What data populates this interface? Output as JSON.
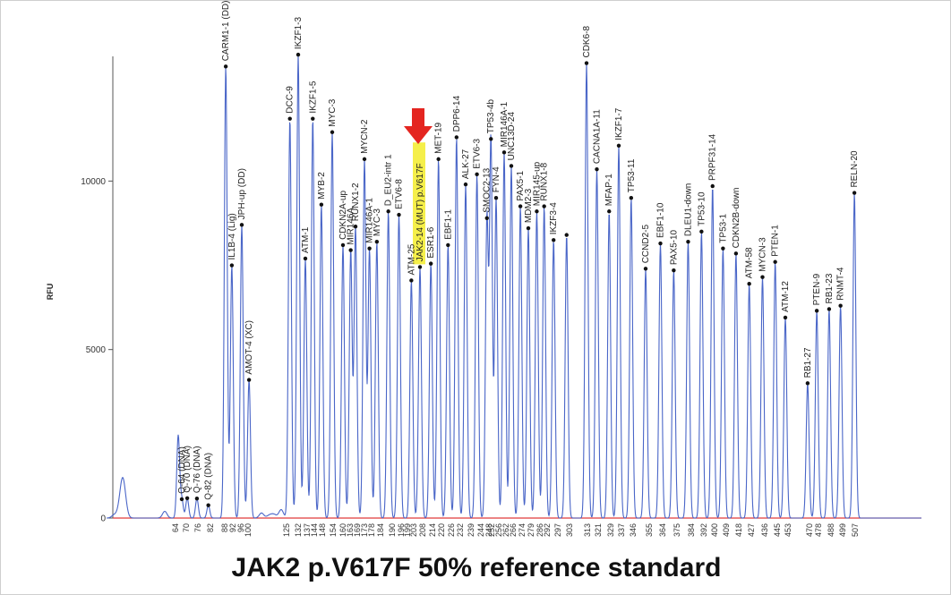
{
  "caption": "JAK2 p.V617F 50% reference standard",
  "chart_data": {
    "type": "line",
    "ylabel": "RFU",
    "ylim": [
      0,
      13700
    ],
    "yticks": [
      0,
      5000,
      10000
    ],
    "grid": false,
    "colors": {
      "trace": "#4a66c8",
      "baseline": "#e03a3a",
      "marker": "#111111",
      "highlight": "#f5ef4a",
      "arrow": "#e42520"
    },
    "size_ticks": [
      "64",
      "70",
      "76",
      "82",
      "88",
      "92",
      "96",
      "100",
      "125",
      "132",
      "137",
      "144",
      "148",
      "154",
      "160",
      "163",
      "169",
      "173",
      "178",
      "184",
      "190",
      "196",
      "199",
      "203",
      "208",
      "214",
      "220",
      "226",
      "232",
      "239",
      "244",
      "248",
      "252",
      "256",
      "262",
      "266",
      "274",
      "279",
      "286",
      "292",
      "297",
      "303",
      "313",
      "321",
      "329",
      "337",
      "346",
      "355",
      "364",
      "375",
      "384",
      "392",
      "400",
      "409",
      "418",
      "427",
      "436",
      "445",
      "453",
      "470",
      "478",
      "488",
      "499",
      "507"
    ],
    "peaks": [
      {
        "size": 65.5,
        "rfu": 2450,
        "label": ""
      },
      {
        "size": 67.5,
        "rfu": 560,
        "label": "Q-64 (DNA)"
      },
      {
        "size": 70.5,
        "rfu": 590,
        "label": "Q-70 (DNA)"
      },
      {
        "size": 75.5,
        "rfu": 580,
        "label": "Q-76 (DNA)"
      },
      {
        "size": 81.0,
        "rfu": 380,
        "label": "Q-82 (DNA)"
      },
      {
        "size": 88.5,
        "rfu": 13400,
        "label": "CARM1-1 (DD)"
      },
      {
        "size": 91.5,
        "rfu": 7500,
        "label": "IL1B-4 (Lig)"
      },
      {
        "size": 96.5,
        "rfu": 8700,
        "label": "JPH-up (DD)"
      },
      {
        "size": 100.5,
        "rfu": 4100,
        "label": "AMOT-4 (XC)"
      },
      {
        "size": 127.0,
        "rfu": 11850,
        "label": "DCC-9"
      },
      {
        "size": 132.0,
        "rfu": 13750,
        "label": "IKZF1-3"
      },
      {
        "size": 136.0,
        "rfu": 7700,
        "label": "ATM-1"
      },
      {
        "size": 142.5,
        "rfu": 11850,
        "label": "IKZF1-5"
      },
      {
        "size": 147.5,
        "rfu": 9300,
        "label": "MYB-2"
      },
      {
        "size": 153.5,
        "rfu": 11450,
        "label": "MYC-3"
      },
      {
        "size": 160.0,
        "rfu": 8100,
        "label": "CDKN2A-up"
      },
      {
        "size": 163.5,
        "rfu": 7950,
        "label": "MIR146A"
      },
      {
        "size": 167.5,
        "rfu": 8650,
        "label": "RUNX1-2"
      },
      {
        "size": 173.0,
        "rfu": 10650,
        "label": "MYCN-2"
      },
      {
        "size": 176.5,
        "rfu": 8000,
        "label": "MIR146A-1"
      },
      {
        "size": 181.5,
        "rfu": 8200,
        "label": "MYC-3"
      },
      {
        "size": 188.0,
        "rfu": 9100,
        "label": "D_EU2-intr 1"
      },
      {
        "size": 194.5,
        "rfu": 9000,
        "label": "ETV6-8"
      },
      {
        "size": 201.5,
        "rfu": 7050,
        "label": "ATM-25"
      },
      {
        "size": 206.5,
        "rfu": 7450,
        "label": "JAK2-14 (MUT) p.V617F"
      },
      {
        "size": 213.0,
        "rfu": 7550,
        "label": "ESR1-6"
      },
      {
        "size": 218.0,
        "rfu": 10650,
        "label": "MET-19"
      },
      {
        "size": 224.0,
        "rfu": 8100,
        "label": "EBF1-1"
      },
      {
        "size": 229.5,
        "rfu": 11300,
        "label": "DPP6-14"
      },
      {
        "size": 235.5,
        "rfu": 9900,
        "label": "ALK-27"
      },
      {
        "size": 242.0,
        "rfu": 10200,
        "label": "ETV6-3"
      },
      {
        "size": 247.0,
        "rfu": 8900,
        "label": "SMOC2-13"
      },
      {
        "size": 251.0,
        "rfu": 11250,
        "label": "TP53-4b"
      },
      {
        "size": 254.5,
        "rfu": 9500,
        "label": "FYN-4"
      },
      {
        "size": 260.5,
        "rfu": 10850,
        "label": "MIR146A-1"
      },
      {
        "size": 265.0,
        "rfu": 10450,
        "label": "UNC13D-24"
      },
      {
        "size": 272.5,
        "rfu": 9250,
        "label": "PAX5-1"
      },
      {
        "size": 277.5,
        "rfu": 8600,
        "label": "MDM2-3"
      },
      {
        "size": 283.5,
        "rfu": 9100,
        "label": "MIR145-up"
      },
      {
        "size": 289.5,
        "rfu": 9250,
        "label": "RUNX1-8"
      },
      {
        "size": 295.0,
        "rfu": 8250,
        "label": "IKZF3-4"
      },
      {
        "size": 301.5,
        "rfu": 8400,
        "label": ""
      },
      {
        "size": 312.5,
        "rfu": 13500,
        "label": "CDK6-8"
      },
      {
        "size": 320.0,
        "rfu": 10350,
        "label": "CACNA1A-11"
      },
      {
        "size": 328.0,
        "rfu": 9100,
        "label": "MFAP-1"
      },
      {
        "size": 335.0,
        "rfu": 11050,
        "label": "IKZF1-7"
      },
      {
        "size": 344.5,
        "rfu": 9500,
        "label": "TP53-11"
      },
      {
        "size": 353.0,
        "rfu": 7400,
        "label": "CCND2-5"
      },
      {
        "size": 362.5,
        "rfu": 8150,
        "label": "EBF1-10"
      },
      {
        "size": 372.5,
        "rfu": 7350,
        "label": "PAX5-10"
      },
      {
        "size": 382.0,
        "rfu": 8200,
        "label": "DLEU1-down"
      },
      {
        "size": 390.5,
        "rfu": 8500,
        "label": "TP53-10"
      },
      {
        "size": 398.5,
        "rfu": 9850,
        "label": "PRPF31-14"
      },
      {
        "size": 406.5,
        "rfu": 8000,
        "label": "TP53-1"
      },
      {
        "size": 416.0,
        "rfu": 7850,
        "label": "CDKN2B-down"
      },
      {
        "size": 425.5,
        "rfu": 6950,
        "label": "ATM-58"
      },
      {
        "size": 434.5,
        "rfu": 7150,
        "label": "MYCN-3"
      },
      {
        "size": 443.5,
        "rfu": 7600,
        "label": "PTEN-1"
      },
      {
        "size": 451.0,
        "rfu": 5950,
        "label": "ATM-12"
      },
      {
        "size": 468.5,
        "rfu": 4000,
        "label": "RB1-27"
      },
      {
        "size": 476.5,
        "rfu": 6150,
        "label": "PTEN-9"
      },
      {
        "size": 486.5,
        "rfu": 6200,
        "label": "RB1-23"
      },
      {
        "size": 497.0,
        "rfu": 6300,
        "label": "RNMT-4"
      },
      {
        "size": 506.5,
        "rfu": 9650,
        "label": "RELN-20"
      }
    ],
    "highlight_label": "JAK2-14 (MUT) p.V617F"
  }
}
